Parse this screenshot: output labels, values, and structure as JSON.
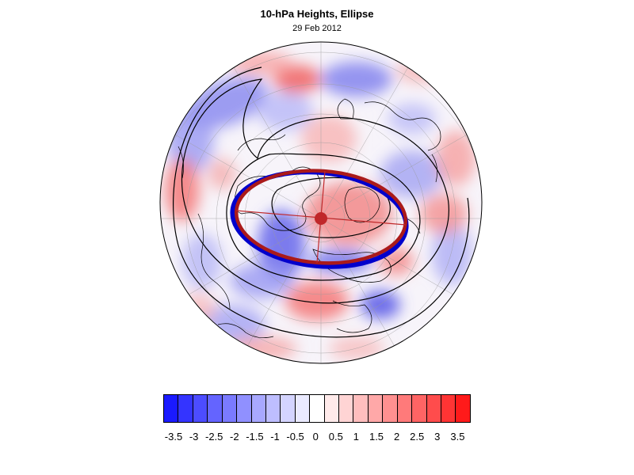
{
  "title": "10-hPa Heights, Ellipse",
  "date": "29 Feb 2012",
  "colors": {
    "ellipse_observed": "#0000cc",
    "ellipse_fit": "#aa1a1a",
    "center_marker": "#c0282a",
    "negative_max": "#1010ff",
    "positive_max": "#ff1010",
    "neutral": "#ffffff",
    "contour": "#000000"
  },
  "legend": {
    "colors": [
      "#1a1aff",
      "#3434ff",
      "#4c4cff",
      "#6464ff",
      "#7a7aff",
      "#9090ff",
      "#a8a8ff",
      "#bebeff",
      "#d4d4ff",
      "#eaeaff",
      "#ffffff",
      "#ffeaea",
      "#ffd4d4",
      "#ffbebe",
      "#ffa8a8",
      "#ff9090",
      "#ff7a7a",
      "#ff6464",
      "#ff4c4c",
      "#ff3434",
      "#ff1a1a"
    ],
    "labels": [
      "-3.5",
      "-3",
      "-2.5",
      "-2",
      "-1.5",
      "-1",
      "-0.5",
      "0",
      "0.5",
      "1",
      "1.5",
      "2",
      "2.5",
      "3",
      "3.5"
    ]
  }
}
